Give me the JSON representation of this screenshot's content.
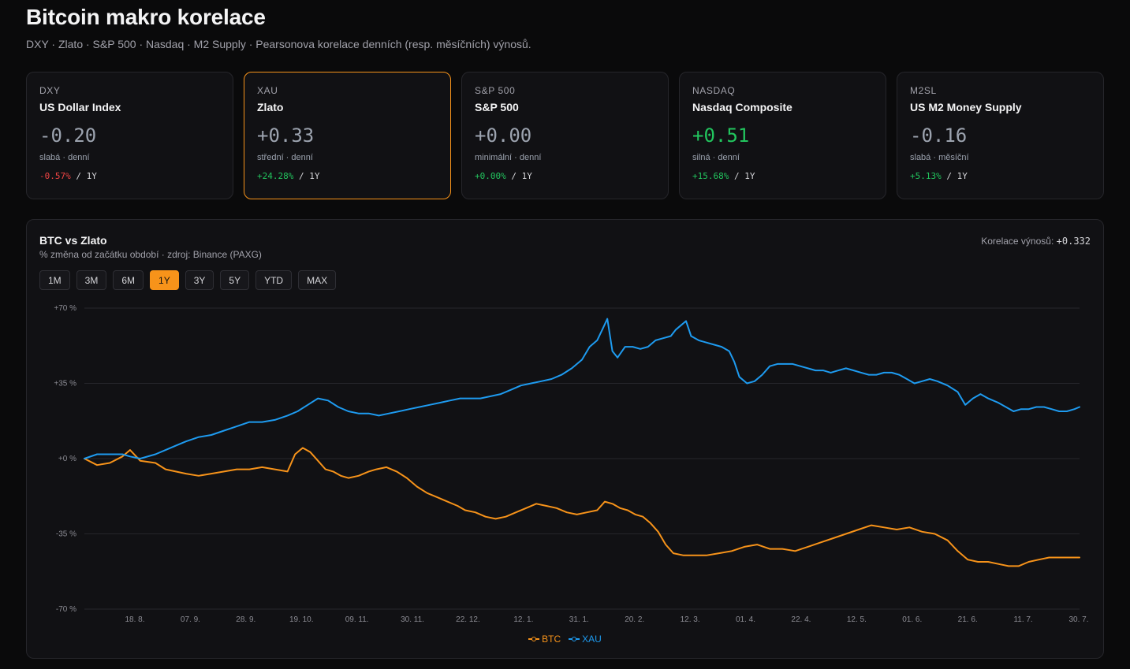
{
  "page": {
    "title": "Bitcoin makro korelace",
    "subtitle": "DXY · Zlato · S&P 500 · Nasdaq · M2 Supply · Pearsonova korelace denních (resp. měsíčních) výnosů."
  },
  "cards": [
    {
      "code": "DXY",
      "name": "US Dollar Index",
      "corr": "-0.20",
      "strength": "slabá · denní",
      "change": "-0.57%",
      "period": "1Y"
    },
    {
      "code": "XAU",
      "name": "Zlato",
      "corr": "+0.33",
      "strength": "střední · denní",
      "change": "+24.28%",
      "period": "1Y"
    },
    {
      "code": "S&P 500",
      "name": "S&P 500",
      "corr": "+0.00",
      "strength": "minimální · denní",
      "change": "+0.00%",
      "period": "1Y"
    },
    {
      "code": "NASDAQ",
      "name": "Nasdaq Composite",
      "corr": "+0.51",
      "strength": "silná · denní",
      "change": "+15.68%",
      "period": "1Y"
    },
    {
      "code": "M2SL",
      "name": "US M2 Money Supply",
      "corr": "-0.16",
      "strength": "slabá · měsíční",
      "change": "+5.13%",
      "period": "1Y"
    }
  ],
  "panel": {
    "title": "BTC vs Zlato",
    "subtitle": "% změna od začátku období · zdroj: Binance (PAXG)",
    "corr_label": "Korelace výnosů:",
    "corr_value": "+0.332",
    "ranges": [
      "1M",
      "3M",
      "6M",
      "1Y",
      "3Y",
      "5Y",
      "YTD",
      "MAX"
    ],
    "active_range": "1Y"
  },
  "colors": {
    "btc": "#f7931a",
    "xau": "#1e9bf0",
    "accent": "#f7931a",
    "positive": "#22c55e",
    "negative": "#ef4444"
  },
  "chart_data": {
    "type": "line",
    "title": "BTC vs Zlato",
    "ylabel": "",
    "xlabel": "",
    "ylim": [
      -70,
      70
    ],
    "y_ticks": [
      70,
      35,
      0,
      -35,
      -70
    ],
    "y_tick_labels": [
      "+70 %",
      "+35 %",
      "+0 %",
      "-35 %",
      "-70 %"
    ],
    "x_tick_labels": [
      "18. 8.",
      "07. 9.",
      "28. 9.",
      "19. 10.",
      "09. 11.",
      "30. 11.",
      "22. 12.",
      "12. 1.",
      "31. 1.",
      "20. 2.",
      "12. 3.",
      "01. 4.",
      "22. 4.",
      "12. 5.",
      "01. 6.",
      "21. 6.",
      "11. 7.",
      "30. 7."
    ],
    "legend_position": "bottom",
    "grid": true,
    "series": [
      {
        "name": "BTC",
        "points": [
          [
            0,
            0
          ],
          [
            5,
            -3
          ],
          [
            10,
            -2
          ],
          [
            15,
            1
          ],
          [
            18,
            4
          ],
          [
            22,
            -1
          ],
          [
            28,
            -2
          ],
          [
            32,
            -5
          ],
          [
            36,
            -6
          ],
          [
            40,
            -7
          ],
          [
            45,
            -8
          ],
          [
            50,
            -7
          ],
          [
            55,
            -6
          ],
          [
            60,
            -5
          ],
          [
            65,
            -5
          ],
          [
            70,
            -4
          ],
          [
            75,
            -5
          ],
          [
            80,
            -6
          ],
          [
            83,
            2
          ],
          [
            86,
            5
          ],
          [
            89,
            3
          ],
          [
            92,
            -1
          ],
          [
            95,
            -5
          ],
          [
            98,
            -6
          ],
          [
            101,
            -8
          ],
          [
            104,
            -9
          ],
          [
            108,
            -8
          ],
          [
            112,
            -6
          ],
          [
            115,
            -5
          ],
          [
            119,
            -4
          ],
          [
            123,
            -6
          ],
          [
            127,
            -9
          ],
          [
            131,
            -13
          ],
          [
            135,
            -16
          ],
          [
            139,
            -18
          ],
          [
            143,
            -20
          ],
          [
            147,
            -22
          ],
          [
            150,
            -24
          ],
          [
            154,
            -25
          ],
          [
            158,
            -27
          ],
          [
            162,
            -28
          ],
          [
            166,
            -27
          ],
          [
            170,
            -25
          ],
          [
            174,
            -23
          ],
          [
            178,
            -21
          ],
          [
            182,
            -22
          ],
          [
            186,
            -23
          ],
          [
            190,
            -25
          ],
          [
            194,
            -26
          ],
          [
            198,
            -25
          ],
          [
            202,
            -24
          ],
          [
            205,
            -20
          ],
          [
            208,
            -21
          ],
          [
            211,
            -23
          ],
          [
            214,
            -24
          ],
          [
            217,
            -26
          ],
          [
            220,
            -27
          ],
          [
            223,
            -30
          ],
          [
            226,
            -34
          ],
          [
            229,
            -40
          ],
          [
            232,
            -44
          ],
          [
            236,
            -45
          ],
          [
            240,
            -45
          ],
          [
            245,
            -45
          ],
          [
            250,
            -44
          ],
          [
            255,
            -43
          ],
          [
            260,
            -41
          ],
          [
            265,
            -40
          ],
          [
            270,
            -42
          ],
          [
            275,
            -42
          ],
          [
            280,
            -43
          ],
          [
            285,
            -41
          ],
          [
            290,
            -39
          ],
          [
            295,
            -37
          ],
          [
            300,
            -35
          ],
          [
            305,
            -33
          ],
          [
            310,
            -31
          ],
          [
            315,
            -32
          ],
          [
            320,
            -33
          ],
          [
            325,
            -32
          ],
          [
            330,
            -34
          ],
          [
            335,
            -35
          ],
          [
            340,
            -38
          ],
          [
            344,
            -43
          ],
          [
            348,
            -47
          ],
          [
            352,
            -48
          ],
          [
            356,
            -48
          ],
          [
            360,
            -49
          ],
          [
            364,
            -50
          ],
          [
            368,
            -50
          ],
          [
            372,
            -48
          ],
          [
            376,
            -47
          ],
          [
            380,
            -46
          ],
          [
            384,
            -46
          ],
          [
            388,
            -46
          ],
          [
            392,
            -46
          ]
        ]
      },
      {
        "name": "XAU",
        "points": [
          [
            0,
            0
          ],
          [
            5,
            2
          ],
          [
            10,
            2
          ],
          [
            15,
            2
          ],
          [
            18,
            1
          ],
          [
            22,
            0
          ],
          [
            28,
            2
          ],
          [
            32,
            4
          ],
          [
            36,
            6
          ],
          [
            40,
            8
          ],
          [
            45,
            10
          ],
          [
            50,
            11
          ],
          [
            55,
            13
          ],
          [
            60,
            15
          ],
          [
            65,
            17
          ],
          [
            70,
            17
          ],
          [
            75,
            18
          ],
          [
            80,
            20
          ],
          [
            84,
            22
          ],
          [
            88,
            25
          ],
          [
            92,
            28
          ],
          [
            96,
            27
          ],
          [
            100,
            24
          ],
          [
            104,
            22
          ],
          [
            108,
            21
          ],
          [
            112,
            21
          ],
          [
            116,
            20
          ],
          [
            120,
            21
          ],
          [
            124,
            22
          ],
          [
            128,
            23
          ],
          [
            132,
            24
          ],
          [
            136,
            25
          ],
          [
            140,
            26
          ],
          [
            144,
            27
          ],
          [
            148,
            28
          ],
          [
            152,
            28
          ],
          [
            156,
            28
          ],
          [
            160,
            29
          ],
          [
            164,
            30
          ],
          [
            168,
            32
          ],
          [
            172,
            34
          ],
          [
            176,
            35
          ],
          [
            180,
            36
          ],
          [
            184,
            37
          ],
          [
            188,
            39
          ],
          [
            192,
            42
          ],
          [
            196,
            46
          ],
          [
            199,
            52
          ],
          [
            202,
            55
          ],
          [
            204,
            60
          ],
          [
            206,
            65
          ],
          [
            208,
            50
          ],
          [
            210,
            47
          ],
          [
            213,
            52
          ],
          [
            216,
            52
          ],
          [
            219,
            51
          ],
          [
            222,
            52
          ],
          [
            225,
            55
          ],
          [
            228,
            56
          ],
          [
            231,
            57
          ],
          [
            233,
            60
          ],
          [
            235,
            62
          ],
          [
            237,
            64
          ],
          [
            239,
            57
          ],
          [
            242,
            55
          ],
          [
            245,
            54
          ],
          [
            248,
            53
          ],
          [
            251,
            52
          ],
          [
            254,
            50
          ],
          [
            256,
            45
          ],
          [
            258,
            38
          ],
          [
            261,
            35
          ],
          [
            264,
            36
          ],
          [
            267,
            39
          ],
          [
            270,
            43
          ],
          [
            273,
            44
          ],
          [
            276,
            44
          ],
          [
            279,
            44
          ],
          [
            282,
            43
          ],
          [
            285,
            42
          ],
          [
            288,
            41
          ],
          [
            291,
            41
          ],
          [
            294,
            40
          ],
          [
            297,
            41
          ],
          [
            300,
            42
          ],
          [
            303,
            41
          ],
          [
            306,
            40
          ],
          [
            309,
            39
          ],
          [
            312,
            39
          ],
          [
            315,
            40
          ],
          [
            318,
            40
          ],
          [
            321,
            39
          ],
          [
            324,
            37
          ],
          [
            327,
            35
          ],
          [
            330,
            36
          ],
          [
            333,
            37
          ],
          [
            336,
            36
          ],
          [
            340,
            34
          ],
          [
            344,
            31
          ],
          [
            347,
            25
          ],
          [
            350,
            28
          ],
          [
            353,
            30
          ],
          [
            356,
            28
          ],
          [
            360,
            26
          ],
          [
            363,
            24
          ],
          [
            366,
            22
          ],
          [
            369,
            23
          ],
          [
            372,
            23
          ],
          [
            375,
            24
          ],
          [
            378,
            24
          ],
          [
            381,
            23
          ],
          [
            384,
            22
          ],
          [
            387,
            22
          ],
          [
            390,
            23
          ],
          [
            392,
            24
          ]
        ]
      }
    ]
  }
}
